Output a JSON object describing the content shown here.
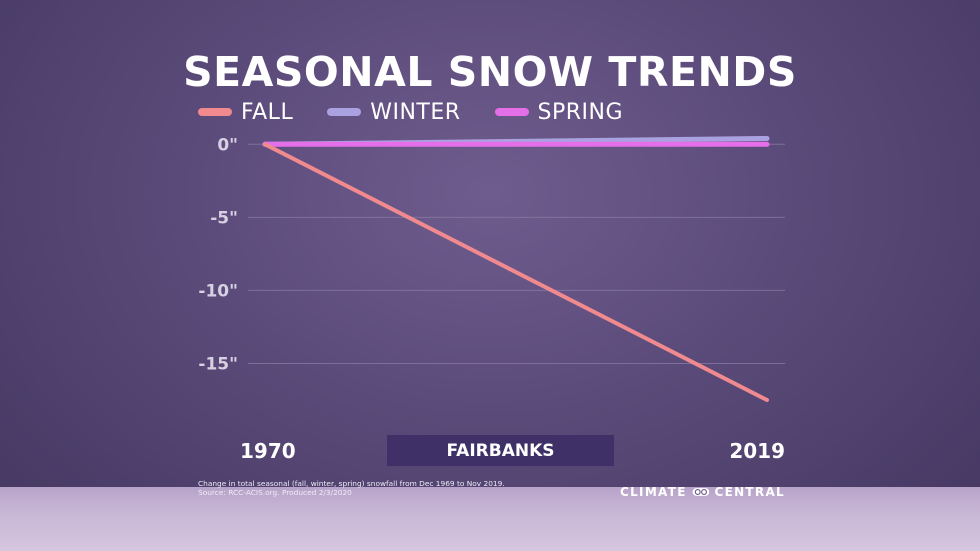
{
  "title": "SEASONAL SNOW TRENDS",
  "location": "FAIRBANKS",
  "footnote": {
    "line1": "Change in total seasonal (fall, winter, spring) snowfall from Dec 1969 to Nov 2019.",
    "line2": "Source: RCC-ACIS.org. Produced 2/3/2020"
  },
  "brand": {
    "left": "CLIMATE",
    "right": "CENTRAL",
    "logo_icon": "climate-central-logo-icon"
  },
  "colors": {
    "fall": "#f08a8f",
    "winter": "#aaa2e0",
    "spring": "#e46fe8",
    "grid": "#8c7fa6"
  },
  "chart_data": {
    "type": "line",
    "title": "SEASONAL SNOW TRENDS",
    "x": [
      1970,
      2019
    ],
    "x_tick_labels": [
      "1970",
      "2019"
    ],
    "y_ticks": [
      0,
      -5,
      -10,
      -15
    ],
    "y_tick_labels": [
      "0\"",
      "-5\"",
      "-10\"",
      "-15\""
    ],
    "ylim": [
      -17.5,
      0.5
    ],
    "grid": true,
    "legend_position": "top-left",
    "series": [
      {
        "name": "FALL",
        "color": "#f08a8f",
        "values": [
          0,
          -17.5
        ]
      },
      {
        "name": "WINTER",
        "color": "#aaa2e0",
        "values": [
          0,
          0.4
        ]
      },
      {
        "name": "SPRING",
        "color": "#e46fe8",
        "values": [
          0,
          0
        ]
      }
    ]
  }
}
